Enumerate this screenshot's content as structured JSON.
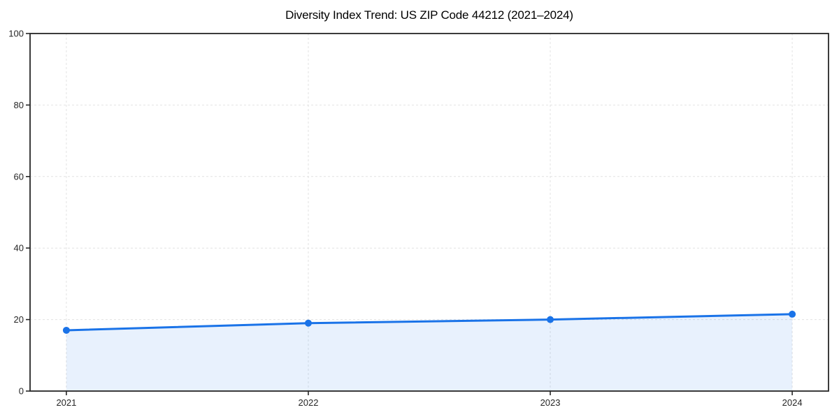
{
  "figure": {
    "background_color": "#ffffff"
  },
  "chart_data": {
    "type": "area",
    "title": "Diversity Index Trend: US ZIP Code 44212 (2021–2024)",
    "x": [
      2021,
      2022,
      2023,
      2024
    ],
    "xticklabels": [
      "2021",
      "2022",
      "2023",
      "2024"
    ],
    "series": [
      {
        "name": "Diversity Index",
        "values": [
          17,
          19,
          20,
          21.5
        ]
      }
    ],
    "xlabel": "",
    "ylabel": "",
    "xlim": [
      2020.85,
      2024.15
    ],
    "ylim": [
      0,
      100
    ],
    "yticks": [
      0,
      20,
      40,
      60,
      80,
      100
    ],
    "yticklabels": [
      "0",
      "20",
      "40",
      "60",
      "80",
      "100"
    ],
    "grid": "dashed",
    "legend_position": "none",
    "line_color": "#1a73e8",
    "marker": "circle",
    "fill_color": "rgba(26,115,232,0.10)",
    "grid_color": "#e2e2e2",
    "spine_color": "#262626",
    "tick_label_color": "#262626",
    "title_color": "#000000"
  }
}
